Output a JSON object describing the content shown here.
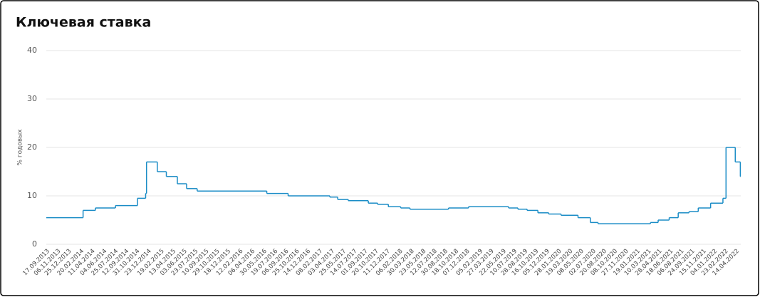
{
  "chart_data": {
    "type": "step-line",
    "title": "Ключевая ставка",
    "y_label": "% годовых",
    "series": [
      {
        "color": "#1a8cc6",
        "x": [
          "13.09.2013",
          "03.03.2014",
          "28.04.2014",
          "28.07.2014",
          "05.11.2014",
          "12.12.2014",
          "16.12.2014",
          "03.02.2015",
          "16.03.2015",
          "05.05.2015",
          "16.06.2015",
          "03.08.2015",
          "14.06.2016",
          "19.09.2016",
          "27.03.2017",
          "02.05.2017",
          "19.06.2017",
          "18.09.2017",
          "30.10.2017",
          "18.12.2017",
          "12.02.2018",
          "26.03.2018",
          "17.09.2018",
          "17.12.2018",
          "17.06.2019",
          "29.07.2019",
          "09.09.2019",
          "28.10.2019",
          "16.12.2019",
          "10.02.2020",
          "27.04.2020",
          "22.06.2020",
          "27.07.2020",
          "22.03.2021",
          "26.04.2021",
          "15.06.2021",
          "26.07.2021",
          "13.09.2021",
          "25.10.2021",
          "20.12.2021",
          "14.02.2022",
          "28.02.2022",
          "11.04.2022",
          "04.05.2022"
        ],
        "values": [
          5.5,
          7,
          7.5,
          8,
          9.5,
          10.5,
          17,
          15,
          14,
          12.5,
          11.5,
          11,
          10.5,
          10,
          9.75,
          9.25,
          9,
          8.5,
          8.25,
          7.75,
          7.5,
          7.25,
          7.5,
          7.75,
          7.5,
          7.25,
          7,
          6.5,
          6.25,
          6,
          5.5,
          4.5,
          4.25,
          4.5,
          5,
          5.5,
          6.5,
          6.75,
          7.5,
          8.5,
          9.5,
          20,
          17,
          14
        ]
      }
    ],
    "xlim": [
      "17.09.2013",
      "06.05.2022"
    ],
    "xticks": [
      "17.09.2013",
      "06.11.2013",
      "25.12.2013",
      "20.02.2014",
      "11.04.2014",
      "04.06.2014",
      "25.07.2014",
      "12.09.2014",
      "31.10.2014",
      "23.12.2014",
      "19.02.2015",
      "13.04.2015",
      "03.06.2015",
      "23.07.2015",
      "10.09.2015",
      "29.10.2015",
      "18.12.2015",
      "12.02.2016",
      "06.04.2016",
      "30.05.2016",
      "19.07.2016",
      "06.09.2016",
      "25.10.2016",
      "14.12.2016",
      "08.02.2017",
      "03.04.2017",
      "25.05.2017",
      "14.07.2017",
      "01.09.2017",
      "20.10.2017",
      "11.12.2017",
      "06.02.2018",
      "30.03.2018",
      "23.05.2018",
      "12.07.2018",
      "30.08.2018",
      "18.10.2018",
      "07.12.2018",
      "05.02.2019",
      "27.03.2019",
      "22.05.2019",
      "10.07.2019",
      "28.08.2019",
      "16.10.2019",
      "05.12.2019",
      "28.01.2020",
      "19.03.2020",
      "08.05.2020",
      "02.07.2020",
      "20.08.2020",
      "08.10.2020",
      "27.11.2020",
      "19.01.2021",
      "10.03.2021",
      "28.04.2021",
      "18.06.2021",
      "06.08.2021",
      "24.09.2021",
      "15.11.2021",
      "04.01.2022",
      "23.02.2022",
      "14.04.2022"
    ],
    "ylim": [
      0,
      40
    ],
    "yticks": [
      0,
      10,
      20,
      30,
      40
    ],
    "grid": true
  }
}
